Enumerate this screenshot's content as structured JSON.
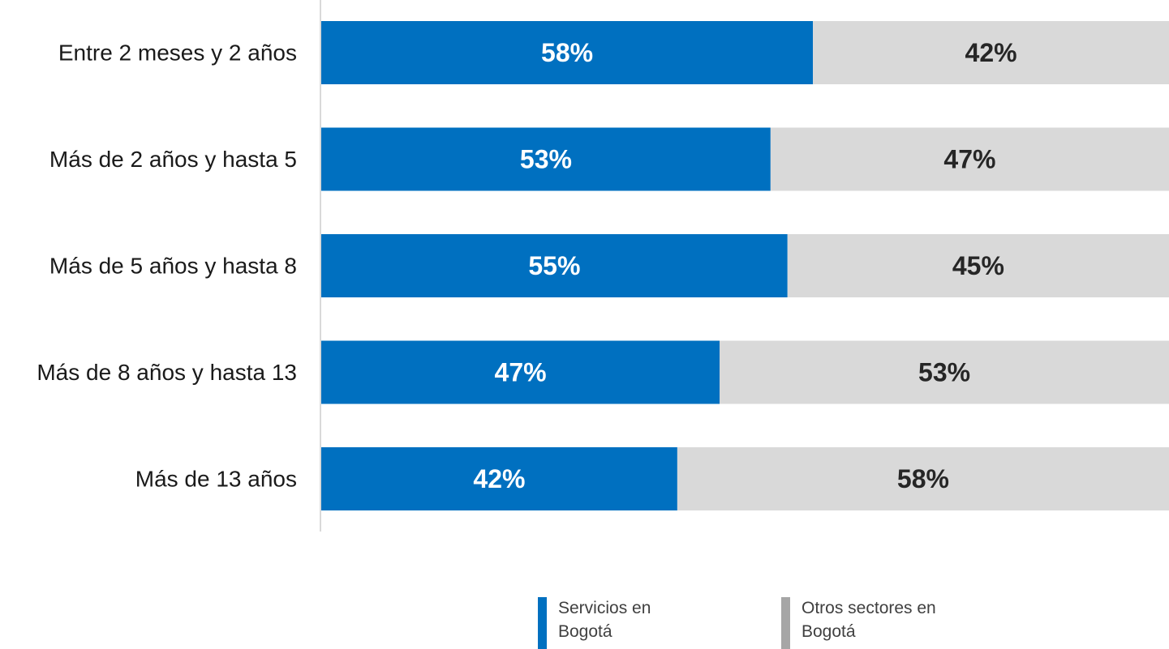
{
  "chart_data": {
    "type": "bar",
    "orientation": "horizontal",
    "stacked": true,
    "normalized": "100%",
    "categories": [
      "Entre 2 meses y 2 años",
      "Más de 2 años y hasta 5",
      "Más de 5 años y hasta 8",
      "Más de 8 años y hasta 13",
      "Más de 13 años"
    ],
    "series": [
      {
        "name": "Servicios en Bogotá",
        "values": [
          58,
          53,
          55,
          47,
          42
        ],
        "color": "#0070C0",
        "label_color": "#ffffff"
      },
      {
        "name": "Otros sectores en Bogotá",
        "values": [
          42,
          47,
          45,
          53,
          58
        ],
        "color": "#D9D9D9",
        "label_color": "#262626"
      }
    ],
    "value_suffix": "%",
    "xlim": [
      0,
      100
    ],
    "grid": false,
    "legend_position": "bottom"
  },
  "legend": {
    "items": [
      {
        "label_line1": "Servicios en",
        "label_line2": "Bogotá",
        "color": "#0070C0"
      },
      {
        "label_line1": "Otros sectores en",
        "label_line2": "Bogotá",
        "color": "#A6A6A6"
      }
    ]
  }
}
